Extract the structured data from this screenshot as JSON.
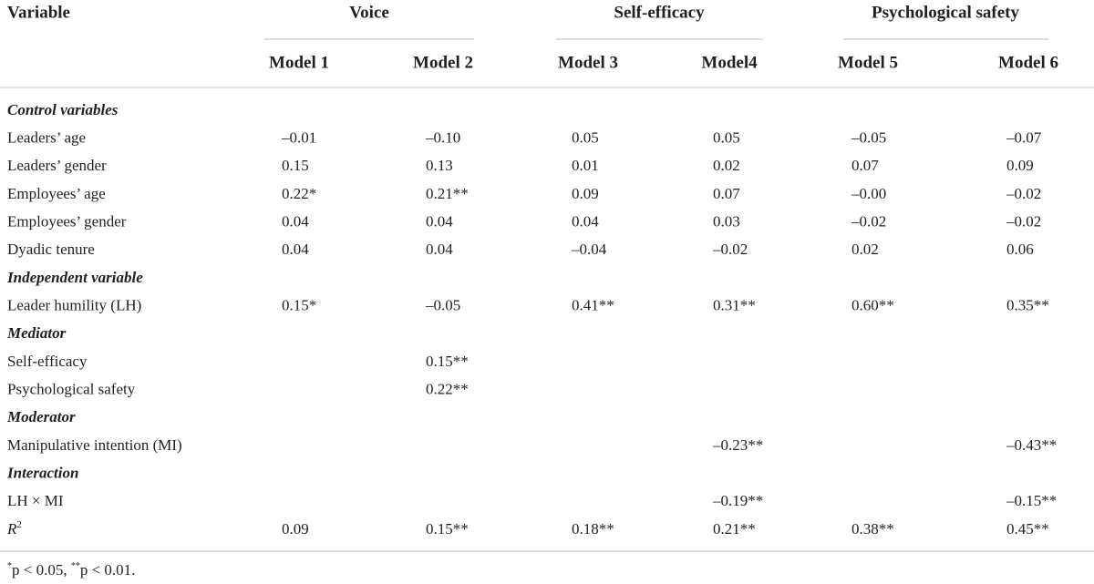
{
  "header": {
    "variable": "Variable",
    "groups": [
      {
        "title": "Voice",
        "models": [
          "Model 1",
          "Model 2"
        ]
      },
      {
        "title": "Self-efficacy",
        "models": [
          "Model 3",
          "Model4"
        ]
      },
      {
        "title": "Psychological safety",
        "models": [
          "Model 5",
          "Model 6"
        ]
      }
    ]
  },
  "rows": [
    {
      "section": "Control variables"
    },
    {
      "label": "Leaders’ age",
      "values": [
        "–0.01",
        "–0.10",
        "0.05",
        "0.05",
        "–0.05",
        "–0.07"
      ]
    },
    {
      "label": "Leaders’ gender",
      "values": [
        "0.15",
        "0.13",
        "0.01",
        "0.02",
        "0.07",
        "0.09"
      ]
    },
    {
      "label": "Employees’ age",
      "values": [
        "0.22*",
        "0.21**",
        "0.09",
        "0.07",
        "–0.00",
        "–0.02"
      ]
    },
    {
      "label": "Employees’ gender",
      "values": [
        "0.04",
        "0.04",
        "0.04",
        "0.03",
        "–0.02",
        "–0.02"
      ]
    },
    {
      "label": "Dyadic tenure",
      "values": [
        "0.04",
        "0.04",
        "–0.04",
        "–0.02",
        "0.02",
        "0.06"
      ]
    },
    {
      "section": "Independent variable"
    },
    {
      "label": "Leader humility (LH)",
      "values": [
        "0.15*",
        "–0.05",
        "0.41**",
        "0.31**",
        "0.60**",
        "0.35**"
      ]
    },
    {
      "section": "Mediator"
    },
    {
      "label": "Self-efficacy",
      "values": [
        null,
        "0.15**",
        null,
        null,
        null,
        null
      ]
    },
    {
      "label": "Psychological safety",
      "values": [
        null,
        "0.22**",
        null,
        null,
        null,
        null
      ]
    },
    {
      "section": "Moderator"
    },
    {
      "label": "Manipulative intention (MI)",
      "values": [
        null,
        null,
        null,
        "–0.23**",
        null,
        "–0.43**"
      ]
    },
    {
      "section": "Interaction"
    },
    {
      "label": "LH × MI",
      "values": [
        null,
        null,
        null,
        "–0.19**",
        null,
        "–0.15**"
      ]
    },
    {
      "label": "R",
      "label_sup": "2",
      "values": [
        "0.09",
        "0.15**",
        "0.18**",
        "0.21**",
        "0.38**",
        "0.45**"
      ]
    }
  ],
  "footnote": [
    [
      "*",
      "p < 0.05, "
    ],
    [
      "**",
      "p < 0.01."
    ]
  ]
}
